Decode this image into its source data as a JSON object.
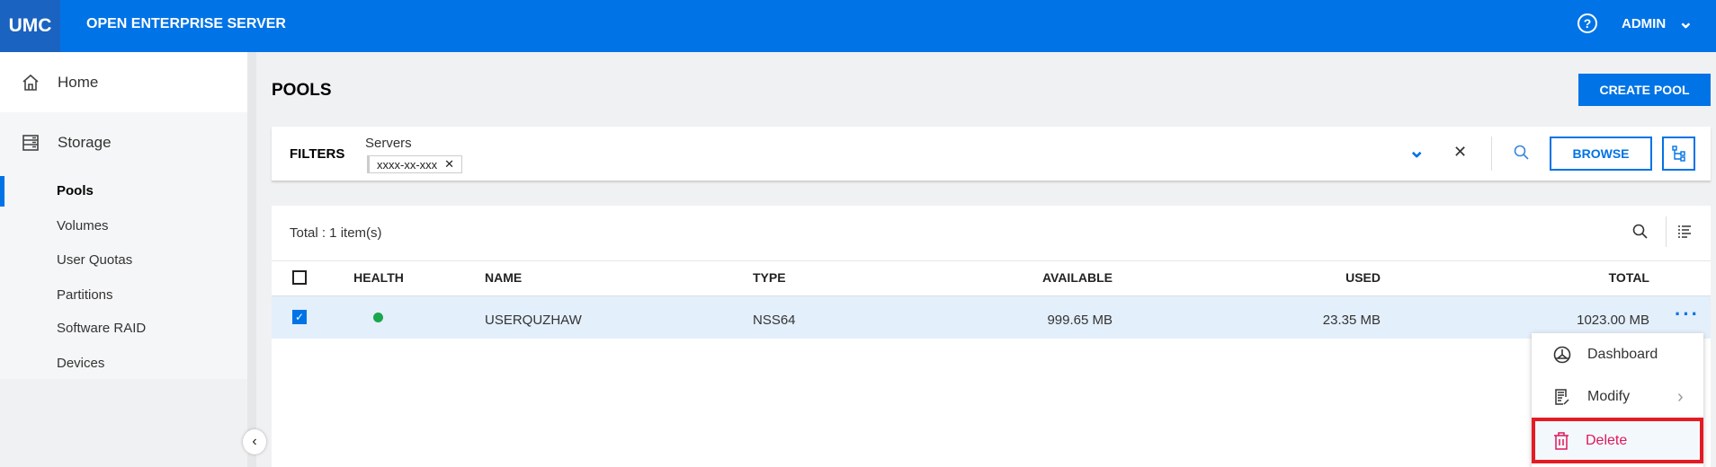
{
  "header": {
    "logo": "UMC",
    "title": "OPEN ENTERPRISE SERVER",
    "help_icon": "?",
    "user": "ADMIN"
  },
  "sidebar": {
    "items": [
      {
        "label": "Home",
        "icon": "home-icon"
      },
      {
        "label": "Storage",
        "icon": "storage-icon"
      }
    ],
    "subitems": [
      "Pools",
      "Volumes",
      "User Quotas",
      "Partitions",
      "Software RAID",
      "Devices"
    ],
    "active": "Pools"
  },
  "page": {
    "title": "POOLS",
    "create_label": "CREATE POOL"
  },
  "filters": {
    "label": "FILTERS",
    "field_label": "Servers",
    "chip": "xxxx-xx-xxx",
    "browse_label": "BROWSE"
  },
  "table": {
    "total": "Total : 1 item(s)",
    "columns": [
      "HEALTH",
      "NAME",
      "TYPE",
      "AVAILABLE",
      "USED",
      "TOTAL"
    ],
    "rows": [
      {
        "selected": true,
        "health": "healthy",
        "name": "USERQUZHAW",
        "type": "NSS64",
        "available": "999.65 MB",
        "used": "23.35 MB",
        "total": "1023.00 MB"
      }
    ]
  },
  "menu": {
    "items": [
      "Dashboard",
      "Modify",
      "Delete"
    ]
  },
  "colors": {
    "accent": "#0073e6",
    "health_ok": "#1aa64a",
    "delete": "#e0175a",
    "highlight": "#e51b23"
  }
}
